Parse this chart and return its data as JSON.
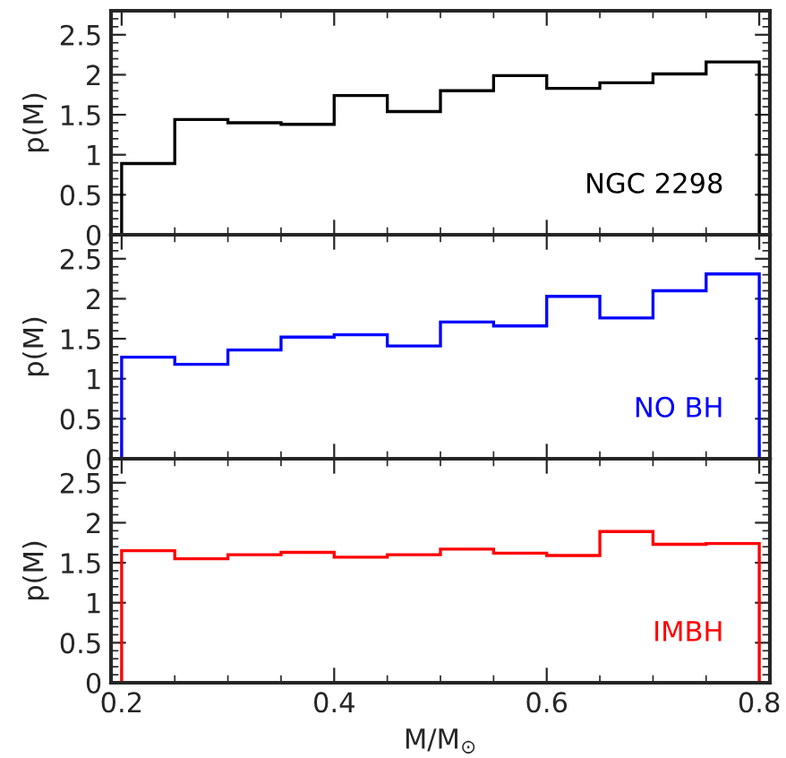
{
  "chart_data": [
    {
      "type": "histogram",
      "ylabel": "p(M)",
      "bins": [
        0.2,
        0.25,
        0.3,
        0.35,
        0.4,
        0.45,
        0.5,
        0.55,
        0.6,
        0.65,
        0.7,
        0.75,
        0.8
      ],
      "xlim": [
        0.19,
        0.81
      ],
      "ylim": [
        0,
        2.8
      ],
      "xticks": [
        0.2,
        0.4,
        0.6,
        0.8
      ],
      "yticks": [
        0,
        0.5,
        1,
        1.5,
        2,
        2.5
      ],
      "tick_labels": "y",
      "grid": false,
      "legend": false,
      "series": [
        {
          "name": "NGC 2298",
          "color": "#000000",
          "values": [
            0.89,
            1.44,
            1.4,
            1.38,
            1.74,
            1.54,
            1.8,
            1.99,
            1.83,
            1.9,
            2.01,
            2.16
          ]
        }
      ]
    },
    {
      "type": "histogram",
      "ylabel": "p(M)",
      "bins": [
        0.2,
        0.25,
        0.3,
        0.35,
        0.4,
        0.45,
        0.5,
        0.55,
        0.6,
        0.65,
        0.7,
        0.75,
        0.8
      ],
      "xlim": [
        0.19,
        0.81
      ],
      "ylim": [
        0,
        2.8
      ],
      "xticks": [
        0.2,
        0.4,
        0.6,
        0.8
      ],
      "yticks": [
        0,
        0.5,
        1,
        1.5,
        2,
        2.5
      ],
      "tick_labels": "y",
      "grid": false,
      "legend": false,
      "series": [
        {
          "name": "NO BH",
          "color": "#0000ff",
          "values": [
            1.27,
            1.18,
            1.36,
            1.52,
            1.55,
            1.41,
            1.71,
            1.66,
            2.03,
            1.76,
            2.1,
            2.31
          ]
        }
      ]
    },
    {
      "type": "histogram",
      "ylabel": "p(M)",
      "xlabel": "M/M$_{⊙}$",
      "bins": [
        0.2,
        0.25,
        0.3,
        0.35,
        0.4,
        0.45,
        0.5,
        0.55,
        0.6,
        0.65,
        0.7,
        0.75,
        0.8
      ],
      "xlim": [
        0.19,
        0.81
      ],
      "ylim": [
        0,
        2.8
      ],
      "xticks": [
        0.2,
        0.4,
        0.6,
        0.8
      ],
      "yticks": [
        0,
        0.5,
        1,
        1.5,
        2,
        2.5
      ],
      "grid": false,
      "legend": false,
      "series": [
        {
          "name": "IMBH",
          "color": "#ff0000",
          "values": [
            1.65,
            1.55,
            1.6,
            1.63,
            1.57,
            1.6,
            1.67,
            1.62,
            1.59,
            1.89,
            1.73,
            1.74
          ]
        }
      ]
    }
  ]
}
